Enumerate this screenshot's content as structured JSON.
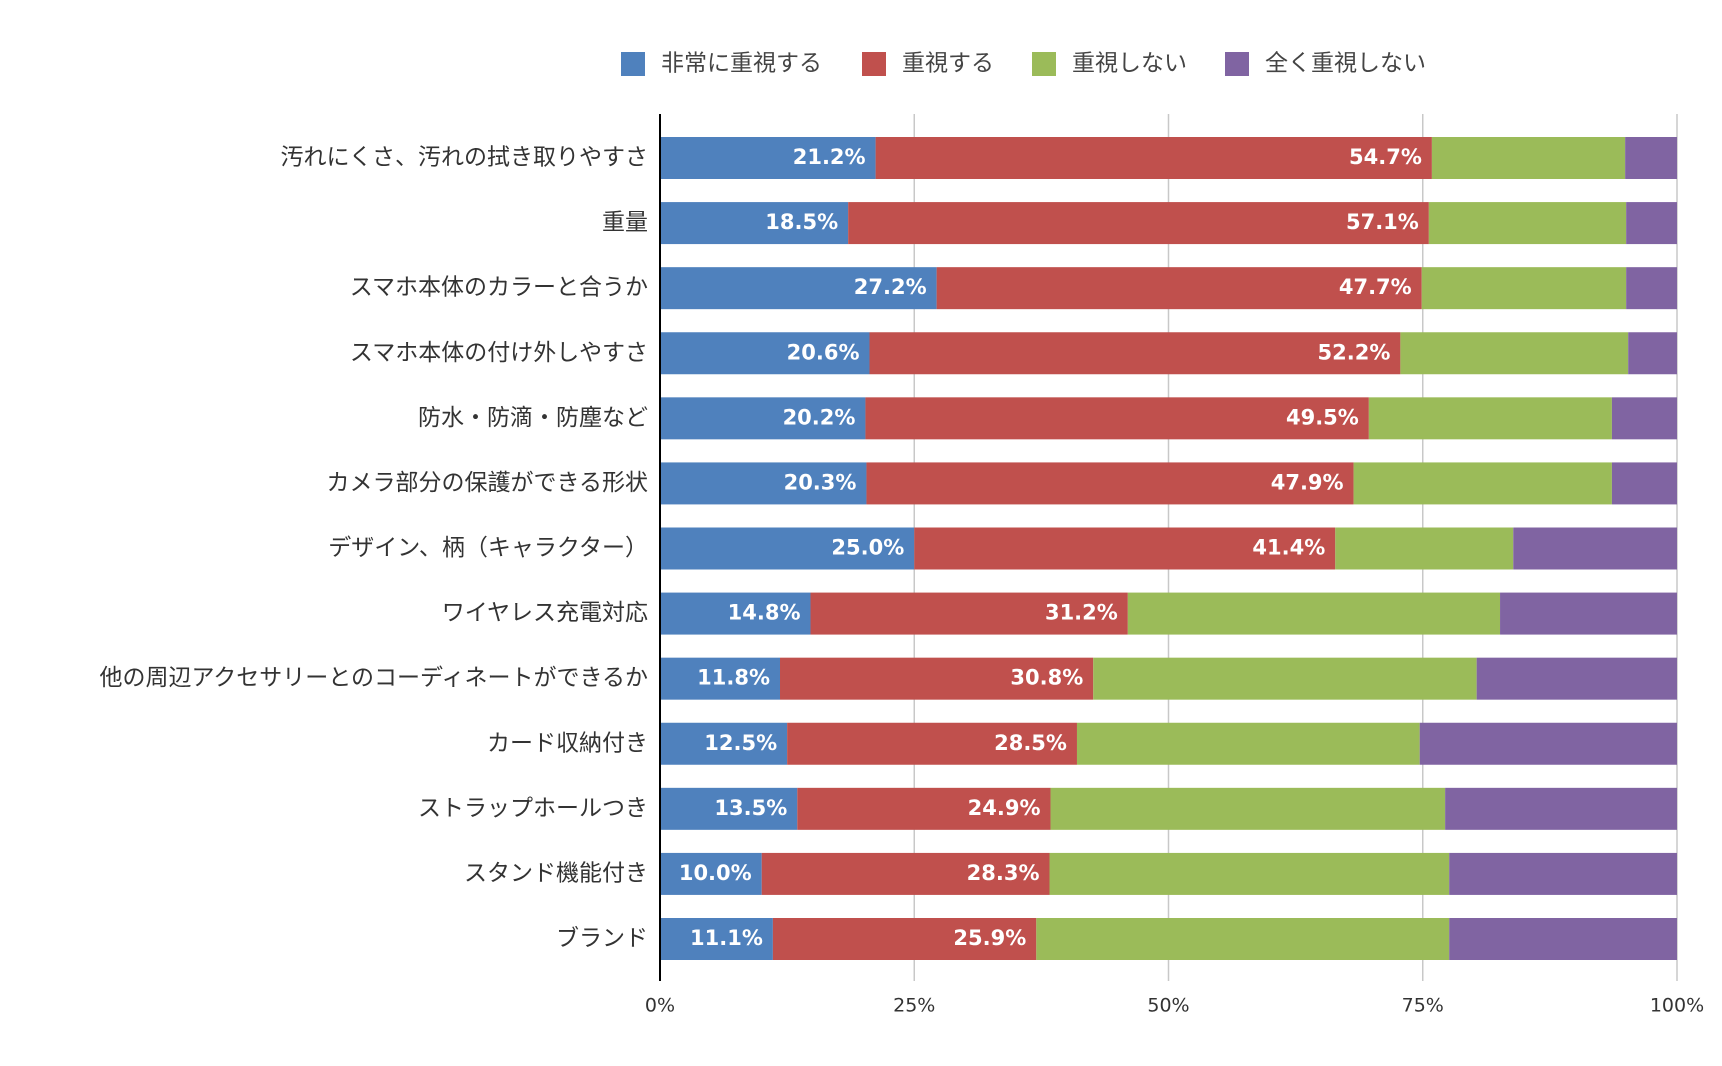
{
  "chart_data": {
    "type": "stacked-bar-horizontal",
    "categories": [
      "汚れにくさ、汚れの拭き取りやすさ",
      "重量",
      "スマホ本体のカラーと合うか",
      "スマホ本体の付け外しやすさ",
      "防水・防滴・防塵など",
      "カメラ部分の保護ができる形状",
      "デザイン、柄（キャラクター）",
      "ワイヤレス充電対応",
      "他の周辺アクセサリーとのコーディネートができるか",
      "カード収納付き",
      "ストラップホールつき",
      "スタンド機能付き",
      "ブランド"
    ],
    "series": [
      {
        "name": "非常に重視する",
        "color": "#4f81bd",
        "values": [
          21.2,
          18.5,
          27.2,
          20.6,
          20.2,
          20.3,
          25.0,
          14.8,
          11.8,
          12.5,
          13.5,
          10.0,
          11.1
        ],
        "value_labels": [
          "21.2%",
          "18.5%",
          "27.2%",
          "20.6%",
          "20.2%",
          "20.3%",
          "25.0%",
          "14.8%",
          "11.8%",
          "12.5%",
          "13.5%",
          "10.0%",
          "11.1%"
        ]
      },
      {
        "name": "重視する",
        "color": "#c0504d",
        "values": [
          54.7,
          57.1,
          47.7,
          52.2,
          49.5,
          47.9,
          41.4,
          31.2,
          30.8,
          28.5,
          24.9,
          28.3,
          25.9
        ],
        "value_labels": [
          "54.7%",
          "57.1%",
          "47.7%",
          "52.2%",
          "49.5%",
          "47.9%",
          "41.4%",
          "31.2%",
          "30.8%",
          "28.5%",
          "24.9%",
          "28.3%",
          "25.9%"
        ]
      },
      {
        "name": "重視しない",
        "color": "#9bbb59",
        "values": [
          19.0,
          19.4,
          20.1,
          22.4,
          23.9,
          25.4,
          17.5,
          36.6,
          37.7,
          33.7,
          38.8,
          39.3,
          40.6
        ]
      },
      {
        "name": "全く重視しない",
        "color": "#8064a2",
        "values": [
          5.1,
          5.0,
          5.0,
          4.8,
          6.4,
          6.4,
          16.1,
          17.4,
          19.7,
          25.3,
          22.8,
          22.4,
          22.4
        ]
      }
    ],
    "xlim": [
      0,
      100
    ],
    "xticks": [
      {
        "value": 0,
        "label": "0%"
      },
      {
        "value": 25,
        "label": "25%"
      },
      {
        "value": 50,
        "label": "50%"
      },
      {
        "value": 75,
        "label": "75%"
      },
      {
        "value": 100,
        "label": "100%"
      }
    ],
    "grid": true,
    "legend": "top"
  }
}
